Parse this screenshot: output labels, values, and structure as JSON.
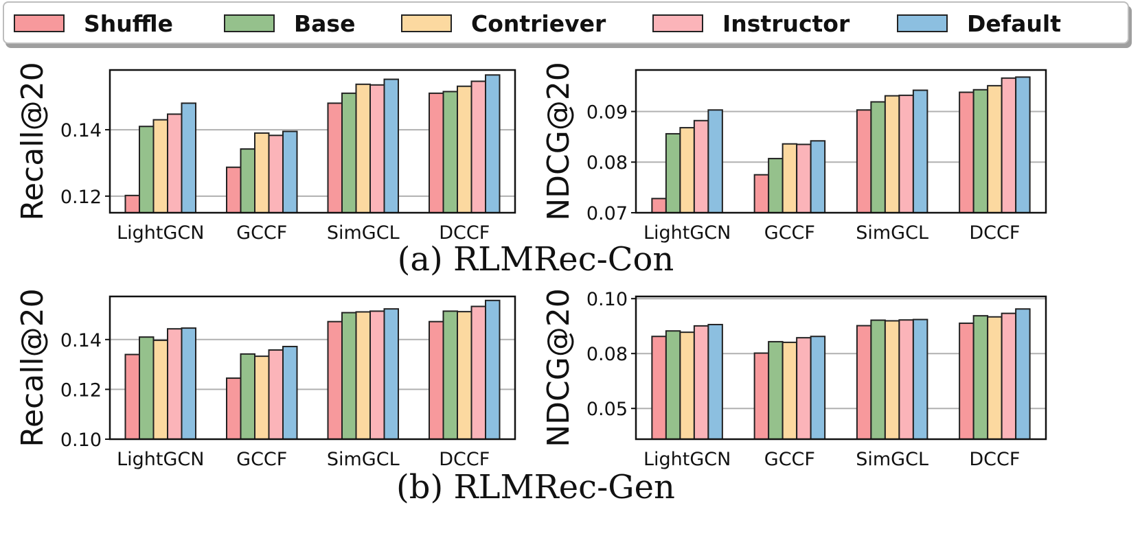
{
  "legend": {
    "items": [
      {
        "label": "Shuffle",
        "color": "#f7999c"
      },
      {
        "label": "Base",
        "color": "#95c18c"
      },
      {
        "label": "Contriever",
        "color": "#fcd9a0"
      },
      {
        "label": "Instructor",
        "color": "#fbb4b9"
      },
      {
        "label": "Default",
        "color": "#8cbfe0"
      }
    ]
  },
  "captions": {
    "a": "(a) RLMRec-Con",
    "b": "(b) RLMRec-Gen"
  },
  "chart_data": [
    {
      "type": "bar",
      "ylabel": "Recall@20",
      "categories": [
        "LightGCN",
        "GCCF",
        "SimGCL",
        "DCCF"
      ],
      "ylim": [
        0.115,
        0.158
      ],
      "yticks": [
        0.12,
        0.14
      ],
      "ytick_labels": [
        "0.12",
        "0.14"
      ],
      "series": [
        {
          "name": "Shuffle",
          "values": [
            0.1202,
            0.1287,
            0.148,
            0.151
          ]
        },
        {
          "name": "Base",
          "values": [
            0.141,
            0.1342,
            0.151,
            0.1515
          ]
        },
        {
          "name": "Contriever",
          "values": [
            0.143,
            0.139,
            0.1537,
            0.1531
          ]
        },
        {
          "name": "Instructor",
          "values": [
            0.1447,
            0.1383,
            0.1535,
            0.1546
          ]
        },
        {
          "name": "Default",
          "values": [
            0.148,
            0.1395,
            0.1552,
            0.1565
          ]
        }
      ],
      "grid": true
    },
    {
      "type": "bar",
      "ylabel": "NDCG@20",
      "categories": [
        "LightGCN",
        "GCCF",
        "SimGCL",
        "DCCF"
      ],
      "ylim": [
        0.07,
        0.0982
      ],
      "yticks": [
        0.07,
        0.08,
        0.09
      ],
      "ytick_labels": [
        "0.07",
        "0.08",
        "0.09"
      ],
      "series": [
        {
          "name": "Shuffle",
          "values": [
            0.0728,
            0.0775,
            0.0903,
            0.0938
          ]
        },
        {
          "name": "Base",
          "values": [
            0.0856,
            0.0807,
            0.0919,
            0.0943
          ]
        },
        {
          "name": "Contriever",
          "values": [
            0.0868,
            0.0836,
            0.0931,
            0.0951
          ]
        },
        {
          "name": "Instructor",
          "values": [
            0.0882,
            0.0835,
            0.0932,
            0.0966
          ]
        },
        {
          "name": "Default",
          "values": [
            0.0903,
            0.0842,
            0.0942,
            0.0968
          ]
        }
      ],
      "grid": true
    },
    {
      "type": "bar",
      "ylabel": "Recall@20",
      "categories": [
        "LightGCN",
        "GCCF",
        "SimGCL",
        "DCCF"
      ],
      "ylim": [
        0.1,
        0.1573
      ],
      "yticks": [
        0.1,
        0.12,
        0.14
      ],
      "ytick_labels": [
        "0.10",
        "0.12",
        "0.14"
      ],
      "series": [
        {
          "name": "Shuffle",
          "values": [
            0.134,
            0.1245,
            0.1472,
            0.1472
          ]
        },
        {
          "name": "Base",
          "values": [
            0.141,
            0.1342,
            0.1508,
            0.1514
          ]
        },
        {
          "name": "Contriever",
          "values": [
            0.1397,
            0.1333,
            0.1511,
            0.1512
          ]
        },
        {
          "name": "Instructor",
          "values": [
            0.1443,
            0.1358,
            0.1514,
            0.1533
          ]
        },
        {
          "name": "Default",
          "values": [
            0.1446,
            0.1372,
            0.1523,
            0.1557
          ]
        }
      ],
      "grid": true
    },
    {
      "type": "bar",
      "ylabel": "NDCG@20",
      "categories": [
        "LightGCN",
        "GCCF",
        "SimGCL",
        "DCCF"
      ],
      "ylim": [
        0.036,
        0.101
      ],
      "yticks": [
        0.05,
        0.075,
        0.1
      ],
      "ytick_labels": [
        "0.05",
        "0.08",
        "0.10"
      ],
      "series": [
        {
          "name": "Shuffle",
          "values": [
            0.0828,
            0.0752,
            0.0877,
            0.0888
          ]
        },
        {
          "name": "Base",
          "values": [
            0.0853,
            0.0804,
            0.0902,
            0.0922
          ]
        },
        {
          "name": "Contriever",
          "values": [
            0.0847,
            0.0801,
            0.0899,
            0.0917
          ]
        },
        {
          "name": "Instructor",
          "values": [
            0.0876,
            0.0822,
            0.0903,
            0.0933
          ]
        },
        {
          "name": "Default",
          "values": [
            0.0882,
            0.0828,
            0.0905,
            0.0953
          ]
        }
      ],
      "grid": true
    }
  ]
}
